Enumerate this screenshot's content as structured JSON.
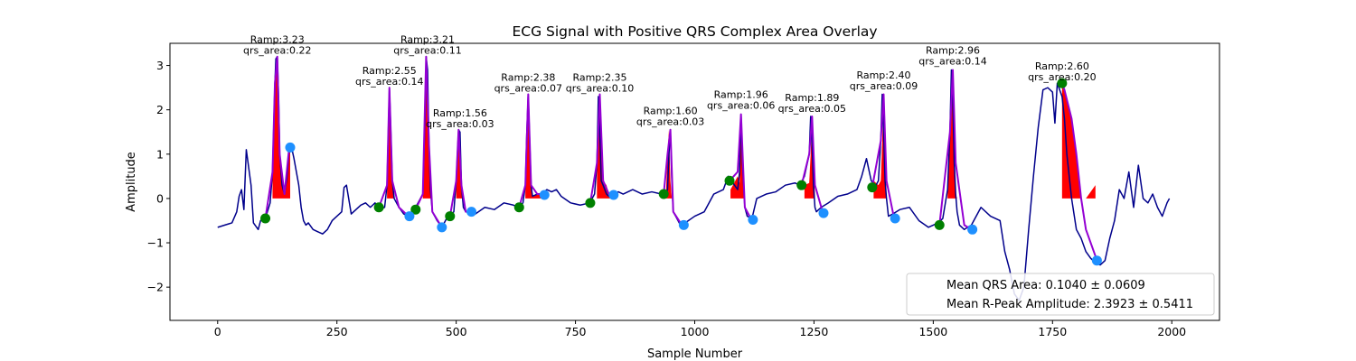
{
  "chart_data": {
    "type": "line",
    "title": "ECG Signal with Positive QRS Complex Area Overlay",
    "xlabel": "Sample Number",
    "ylabel": "Amplitude",
    "xlim": [
      -100,
      2100
    ],
    "ylim": [
      -2.75,
      3.5
    ],
    "xticks": [
      0,
      250,
      500,
      750,
      1000,
      1250,
      1500,
      1750,
      2000
    ],
    "yticks": [
      -2,
      -1,
      0,
      1,
      2,
      3
    ],
    "tick_labels_y": [
      "−2",
      "−1",
      "0",
      "1",
      "2",
      "3"
    ],
    "grid": false,
    "colors": {
      "signal": "#00008b",
      "qrs_segment": "#9400d3",
      "area_fill": "#ff0000",
      "q_point": "#008000",
      "s_point": "#1e90ff"
    },
    "signal": {
      "x": [
        0,
        15,
        30,
        40,
        45,
        50,
        55,
        60,
        70,
        75,
        85,
        90,
        95,
        100,
        110,
        115,
        120,
        122,
        125,
        128,
        130,
        135,
        140,
        145,
        150,
        155,
        160,
        170,
        175,
        180,
        185,
        190,
        200,
        210,
        220,
        230,
        240,
        250,
        260,
        265,
        270,
        280,
        290,
        300,
        310,
        320,
        330,
        335,
        340,
        350,
        355,
        358,
        360,
        363,
        366,
        370,
        380,
        390,
        400,
        405,
        410,
        415,
        420,
        430,
        435,
        437,
        440,
        443,
        446,
        450,
        460,
        470,
        480,
        490,
        495,
        500,
        505,
        508,
        511,
        515,
        520,
        530,
        540,
        560,
        580,
        600,
        620,
        630,
        640,
        645,
        648,
        651,
        654,
        657,
        660,
        670,
        680,
        690,
        700,
        710,
        720,
        740,
        760,
        780,
        790,
        795,
        798,
        801,
        804,
        808,
        815,
        820,
        830,
        840,
        850,
        870,
        890,
        910,
        930,
        940,
        943,
        946,
        949,
        952,
        955,
        960,
        970,
        980,
        1000,
        1020,
        1040,
        1060,
        1070,
        1080,
        1090,
        1094,
        1097,
        1100,
        1105,
        1110,
        1120,
        1130,
        1150,
        1170,
        1190,
        1210,
        1220,
        1230,
        1240,
        1243,
        1246,
        1249,
        1252,
        1255,
        1265,
        1280,
        1300,
        1320,
        1340,
        1350,
        1360,
        1370,
        1380,
        1385,
        1390,
        1393,
        1396,
        1399,
        1402,
        1406,
        1415,
        1430,
        1450,
        1470,
        1490,
        1500,
        1510,
        1520,
        1530,
        1535,
        1538,
        1541,
        1544,
        1547,
        1550,
        1555,
        1565,
        1580,
        1600,
        1620,
        1640,
        1650,
        1660,
        1670,
        1680,
        1690,
        1700,
        1710,
        1720,
        1730,
        1740,
        1750,
        1755,
        1760,
        1765,
        1770,
        1775,
        1780,
        1790,
        1800,
        1810,
        1820,
        1830,
        1840,
        1850,
        1860,
        1870,
        1880,
        1890,
        1900,
        1910,
        1920,
        1930,
        1940,
        1950,
        1960,
        1970,
        1980,
        1990,
        1995
      ],
      "y": [
        -0.65,
        -0.6,
        -0.55,
        -0.3,
        0.05,
        0.2,
        -0.25,
        1.1,
        0.3,
        -0.55,
        -0.7,
        -0.5,
        -0.45,
        -0.45,
        -0.1,
        0.6,
        2.6,
        3.15,
        3.2,
        2.2,
        1.0,
        0.3,
        0.1,
        0.45,
        1.1,
        1.15,
        0.9,
        0.3,
        -0.2,
        -0.5,
        -0.6,
        -0.55,
        -0.7,
        -0.75,
        -0.8,
        -0.7,
        -0.5,
        -0.4,
        -0.3,
        0.25,
        0.3,
        -0.35,
        -0.25,
        -0.15,
        -0.1,
        -0.2,
        -0.1,
        -0.2,
        -0.25,
        -0.2,
        0.3,
        1.6,
        2.5,
        1.5,
        0.4,
        0.0,
        -0.2,
        -0.35,
        -0.4,
        -0.35,
        -0.25,
        -0.2,
        -0.1,
        0.1,
        1.9,
        3.2,
        2.9,
        1.2,
        0.2,
        -0.3,
        -0.5,
        -0.65,
        -0.45,
        -0.35,
        -0.3,
        0.4,
        1.55,
        1.5,
        0.3,
        -0.2,
        -0.3,
        -0.3,
        -0.35,
        -0.2,
        -0.25,
        -0.1,
        -0.15,
        -0.2,
        -0.1,
        0.3,
        1.5,
        2.35,
        1.3,
        0.3,
        0.05,
        0.1,
        0.1,
        0.2,
        0.15,
        0.2,
        0.05,
        -0.1,
        -0.15,
        -0.1,
        0.1,
        0.8,
        2.3,
        1.5,
        0.4,
        0.3,
        0.1,
        0.05,
        0.1,
        0.15,
        0.1,
        0.2,
        0.1,
        0.15,
        0.1,
        0.1,
        0.2,
        1.0,
        1.55,
        0.4,
        -0.3,
        -0.4,
        -0.6,
        -0.55,
        -0.4,
        -0.3,
        0.1,
        0.2,
        0.5,
        0.35,
        0.2,
        0.6,
        1.9,
        0.8,
        -0.2,
        -0.4,
        -0.45,
        0.0,
        0.1,
        0.15,
        0.3,
        0.35,
        0.3,
        0.5,
        1.0,
        1.85,
        1.2,
        0.3,
        -0.2,
        -0.3,
        -0.2,
        -0.1,
        0.05,
        0.1,
        0.2,
        0.5,
        0.9,
        0.4,
        0.3,
        0.4,
        1.3,
        2.35,
        1.5,
        0.4,
        0.0,
        -0.4,
        -0.35,
        -0.25,
        -0.2,
        -0.5,
        -0.65,
        -0.6,
        -0.55,
        -0.45,
        0.2,
        1.5,
        2.9,
        2.2,
        0.8,
        0.1,
        -0.3,
        -0.6,
        -0.7,
        -0.6,
        -0.2,
        -0.4,
        -0.5,
        -1.2,
        -1.6,
        -2.15,
        -2.3,
        -2.0,
        -0.7,
        0.5,
        1.6,
        2.45,
        2.5,
        2.4,
        1.7,
        2.6,
        2.45,
        2.3,
        1.8,
        1.0,
        0.0,
        -0.7,
        -0.9,
        -1.2,
        -1.35,
        -1.45,
        -1.5,
        -1.4,
        -0.9,
        -0.5,
        0.2,
        0.0,
        0.6,
        -0.2,
        0.75,
        0.0,
        -0.1,
        0.1,
        -0.2,
        -0.4,
        -0.1,
        0.0
      ]
    },
    "qrs_segments": [
      {
        "x": [
          100,
          115,
          120,
          125,
          130,
          140,
          150
        ],
        "y": [
          -0.45,
          0.6,
          2.6,
          3.2,
          1.0,
          0.1,
          1.15
        ]
      },
      {
        "x": [
          338,
          355,
          360,
          366,
          380,
          400
        ],
        "y": [
          -0.2,
          0.3,
          2.5,
          0.4,
          -0.2,
          -0.4
        ]
      },
      {
        "x": [
          415,
          430,
          437,
          443,
          450,
          470
        ],
        "y": [
          -0.25,
          0.1,
          3.2,
          1.2,
          -0.3,
          -0.65
        ]
      },
      {
        "x": [
          487,
          500,
          505,
          511,
          520,
          530
        ],
        "y": [
          -0.4,
          0.4,
          1.55,
          0.3,
          -0.3,
          -0.3
        ]
      },
      {
        "x": [
          632,
          645,
          651,
          657,
          670,
          680
        ],
        "y": [
          -0.2,
          0.3,
          2.35,
          0.3,
          0.1,
          0.1
        ]
      },
      {
        "x": [
          781,
          795,
          801,
          808,
          820,
          832
        ],
        "y": [
          -0.1,
          0.8,
          2.35,
          0.4,
          0.1,
          0.1
        ]
      },
      {
        "x": [
          935,
          943,
          949,
          955,
          970,
          980
        ],
        "y": [
          0.1,
          1.0,
          1.55,
          -0.3,
          -0.55,
          -0.6
        ]
      },
      {
        "x": [
          1073,
          1090,
          1097,
          1105,
          1120
        ],
        "y": [
          0.4,
          0.6,
          1.9,
          -0.2,
          -0.5
        ]
      },
      {
        "x": [
          1224,
          1240,
          1246,
          1252,
          1268
        ],
        "y": [
          0.3,
          1.0,
          1.85,
          0.3,
          -0.3
        ]
      },
      {
        "x": [
          1372,
          1390,
          1396,
          1402,
          1418
        ],
        "y": [
          0.25,
          1.3,
          2.35,
          0.4,
          -0.45
        ]
      },
      {
        "x": [
          1513,
          1535,
          1541,
          1547,
          1565,
          1580
        ],
        "y": [
          -0.6,
          1.5,
          2.9,
          0.8,
          -0.6,
          -0.7
        ]
      },
      {
        "x": [
          1770,
          1775,
          1790,
          1800,
          1810,
          1820,
          1840,
          1845
        ],
        "y": [
          2.6,
          2.45,
          1.8,
          1.0,
          0.0,
          -0.7,
          -1.3,
          -1.4
        ]
      }
    ],
    "positive_areas": [
      {
        "x": [
          115,
          120,
          125,
          128,
          130,
          135,
          140,
          145,
          150,
          152
        ],
        "y": [
          0.6,
          2.6,
          3.2,
          2.2,
          1.0,
          0.3,
          0.1,
          0.45,
          1.1,
          1.15
        ]
      },
      {
        "x": [
          355,
          360,
          363,
          366,
          370
        ],
        "y": [
          0.3,
          2.5,
          1.5,
          0.4,
          0.0
        ]
      },
      {
        "x": [
          430,
          437,
          440,
          443,
          446,
          450
        ],
        "y": [
          0.1,
          3.2,
          2.9,
          1.2,
          0.2,
          0.0
        ]
      },
      {
        "x": [
          500,
          505,
          508,
          511,
          514
        ],
        "y": [
          0.4,
          1.55,
          1.5,
          0.3,
          0.0
        ]
      },
      {
        "x": [
          645,
          651,
          654,
          657,
          660,
          670,
          680
        ],
        "y": [
          0.3,
          2.35,
          1.3,
          0.3,
          0.05,
          0.1,
          0.1
        ]
      },
      {
        "x": [
          795,
          801,
          804,
          808,
          815,
          820,
          830
        ],
        "y": [
          0.8,
          2.3,
          1.5,
          0.4,
          0.3,
          0.1,
          0.05
        ]
      },
      {
        "x": [
          940,
          943,
          946,
          949,
          952,
          955
        ],
        "y": [
          0.2,
          1.0,
          1.55,
          0.4,
          0.0,
          0.0
        ]
      },
      {
        "x": [
          1075,
          1090,
          1094,
          1097,
          1100,
          1105
        ],
        "y": [
          0.2,
          0.5,
          0.35,
          1.9,
          0.8,
          0.0
        ]
      },
      {
        "x": [
          1230,
          1240,
          1243,
          1246,
          1249,
          1252
        ],
        "y": [
          0.3,
          0.35,
          1.0,
          1.85,
          1.2,
          0.0
        ]
      },
      {
        "x": [
          1375,
          1385,
          1390,
          1393,
          1396,
          1399,
          1402
        ],
        "y": [
          0.4,
          0.3,
          0.4,
          1.3,
          2.35,
          1.5,
          0.0
        ]
      },
      {
        "x": [
          1530,
          1535,
          1538,
          1541,
          1544,
          1547,
          1550
        ],
        "y": [
          0.2,
          1.5,
          2.9,
          2.2,
          0.8,
          0.1,
          0.0
        ]
      },
      {
        "x": [
          1770,
          1775,
          1780,
          1790,
          1800,
          1810
        ],
        "y": [
          2.6,
          2.45,
          2.3,
          1.8,
          1.0,
          0.0
        ]
      },
      {
        "x": [
          1820,
          1830,
          1840
        ],
        "y": [
          0.0,
          0.15,
          0.3
        ]
      }
    ],
    "q_points": {
      "x": [
        100,
        338,
        415,
        487,
        632,
        781,
        935,
        1073,
        1224,
        1372,
        1513,
        1770
      ],
      "y": [
        -0.45,
        -0.2,
        -0.25,
        -0.4,
        -0.2,
        -0.1,
        0.1,
        0.4,
        0.3,
        0.25,
        -0.6,
        2.6
      ]
    },
    "s_points": {
      "x": [
        152,
        402,
        470,
        532,
        685,
        830,
        977,
        1122,
        1270,
        1420,
        1582,
        1843
      ],
      "y": [
        1.15,
        -0.4,
        -0.65,
        -0.3,
        0.08,
        0.08,
        -0.6,
        -0.48,
        -0.33,
        -0.45,
        -0.7,
        -1.4
      ]
    },
    "annotations": [
      {
        "x": 125,
        "y": 3.2,
        "line1": "Ramp:3.23",
        "line2": "qrs_area:0.22"
      },
      {
        "x": 360,
        "y": 2.5,
        "line1": "Ramp:2.55",
        "line2": "qrs_area:0.14"
      },
      {
        "x": 440,
        "y": 3.2,
        "line1": "Ramp:3.21",
        "line2": "qrs_area:0.11"
      },
      {
        "x": 508,
        "y": 1.55,
        "line1": "Ramp:1.56",
        "line2": "qrs_area:0.03"
      },
      {
        "x": 651,
        "y": 2.35,
        "line1": "Ramp:2.38",
        "line2": "qrs_area:0.07"
      },
      {
        "x": 801,
        "y": 2.35,
        "line1": "Ramp:2.35",
        "line2": "qrs_area:0.10"
      },
      {
        "x": 949,
        "y": 1.6,
        "line1": "Ramp:1.60",
        "line2": "qrs_area:0.03"
      },
      {
        "x": 1097,
        "y": 1.96,
        "line1": "Ramp:1.96",
        "line2": "qrs_area:0.06"
      },
      {
        "x": 1246,
        "y": 1.89,
        "line1": "Ramp:1.89",
        "line2": "qrs_area:0.05"
      },
      {
        "x": 1396,
        "y": 2.4,
        "line1": "Ramp:2.40",
        "line2": "qrs_area:0.09"
      },
      {
        "x": 1541,
        "y": 2.96,
        "line1": "Ramp:2.96",
        "line2": "qrs_area:0.14"
      },
      {
        "x": 1770,
        "y": 2.6,
        "line1": "Ramp:2.60",
        "line2": "qrs_area:0.20"
      }
    ],
    "legend": {
      "placement": "lower-right",
      "entries": [
        "Mean QRS Area: 0.1040 ± 0.0609",
        "Mean R-Peak Amplitude: 2.3923 ± 0.5411"
      ]
    }
  }
}
